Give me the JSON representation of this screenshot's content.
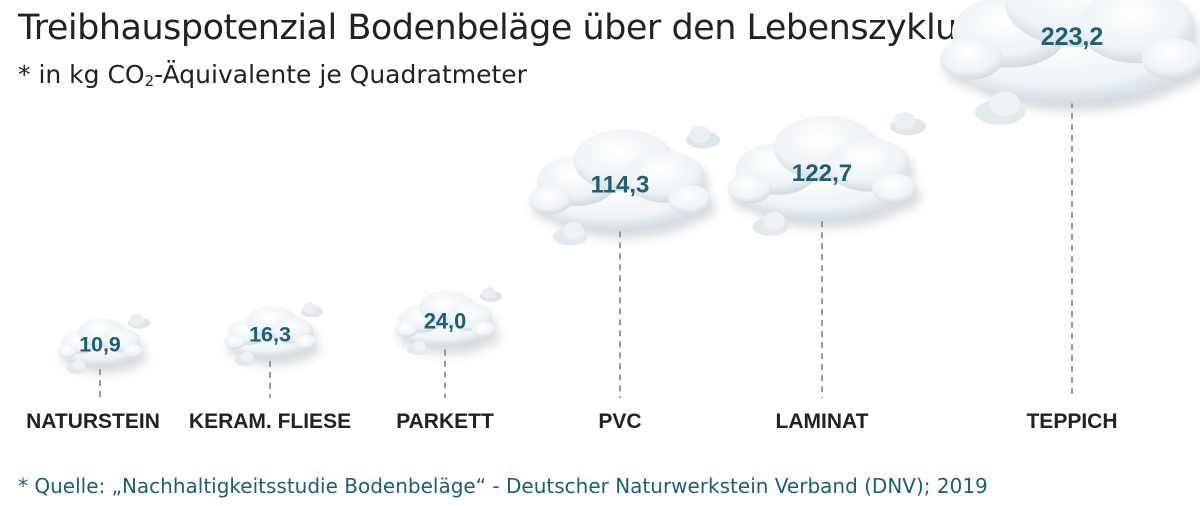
{
  "header": {
    "title": "Treibhauspotenzial Bodenbeläge über den Lebenszyklus",
    "subtitle_prefix": "* in kg CO",
    "subtitle_sub": "2",
    "subtitle_suffix": "-Äquivalente je Quadratmeter"
  },
  "footer": {
    "source": "* Quelle: „Nachhaltigkeitsstudie Bodenbeläge“ - Deutscher Naturwerkstein Verband (DNV); 2019"
  },
  "colors": {
    "value_text": "#1d5f73",
    "label_text": "#222222",
    "cloud_fill": "#eef3f6",
    "cloud_shade": "#c9d6de",
    "dash": "#9a9a9a"
  },
  "chart_data": {
    "type": "bar",
    "categories": [
      "NATURSTEIN",
      "KERAM. FLIESE",
      "PARKETT",
      "PVC",
      "LAMINAT",
      "TEPPICH"
    ],
    "values": [
      10.9,
      16.3,
      24.0,
      114.3,
      122.7,
      223.2
    ],
    "value_labels": [
      "10,9",
      "16,3",
      "24,0",
      "114,3",
      "122,7",
      "223,2"
    ],
    "unit": "kg CO2-Äquivalente je Quadratmeter",
    "grid": false,
    "legend": "none"
  }
}
